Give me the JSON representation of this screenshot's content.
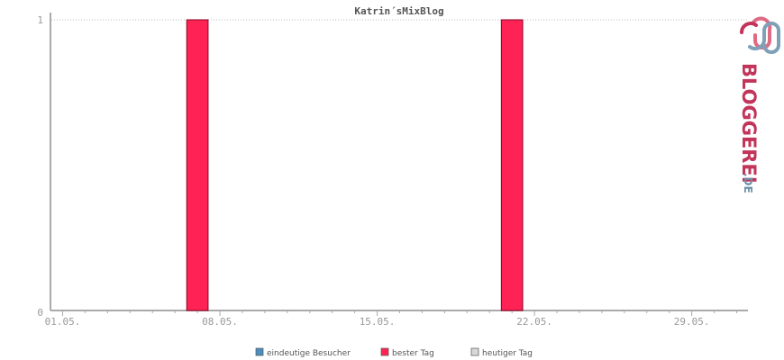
{
  "chart_data": {
    "type": "bar",
    "title": "Katrin´sMixBlog",
    "xlabel": "",
    "ylabel": "",
    "ylim": [
      0,
      1
    ],
    "y_ticks": [
      "0",
      "1"
    ],
    "x_tick_labels": [
      "01.05.",
      "08.05.",
      "15.05.",
      "22.05.",
      "29.05."
    ],
    "x_tick_days": [
      1,
      8,
      15,
      22,
      29
    ],
    "x_domain_days": [
      0.5,
      31.5
    ],
    "series": [
      {
        "name": "eindeutige Besucher",
        "color": "#4a8fc0",
        "points": []
      },
      {
        "name": "bester Tag",
        "color": "#ff2255",
        "points": [
          {
            "day": 7,
            "value": 1
          },
          {
            "day": 21,
            "value": 1
          }
        ]
      },
      {
        "name": "heutiger Tag",
        "color": "#d0d0d0",
        "points": []
      }
    ],
    "grid": true,
    "legend_position": "bottom-center"
  },
  "logo": {
    "word": "BLOGGEREI",
    "suffix": ".DE",
    "colors": {
      "primary": "#c2345a",
      "secondary": "#6a8fa8"
    }
  }
}
